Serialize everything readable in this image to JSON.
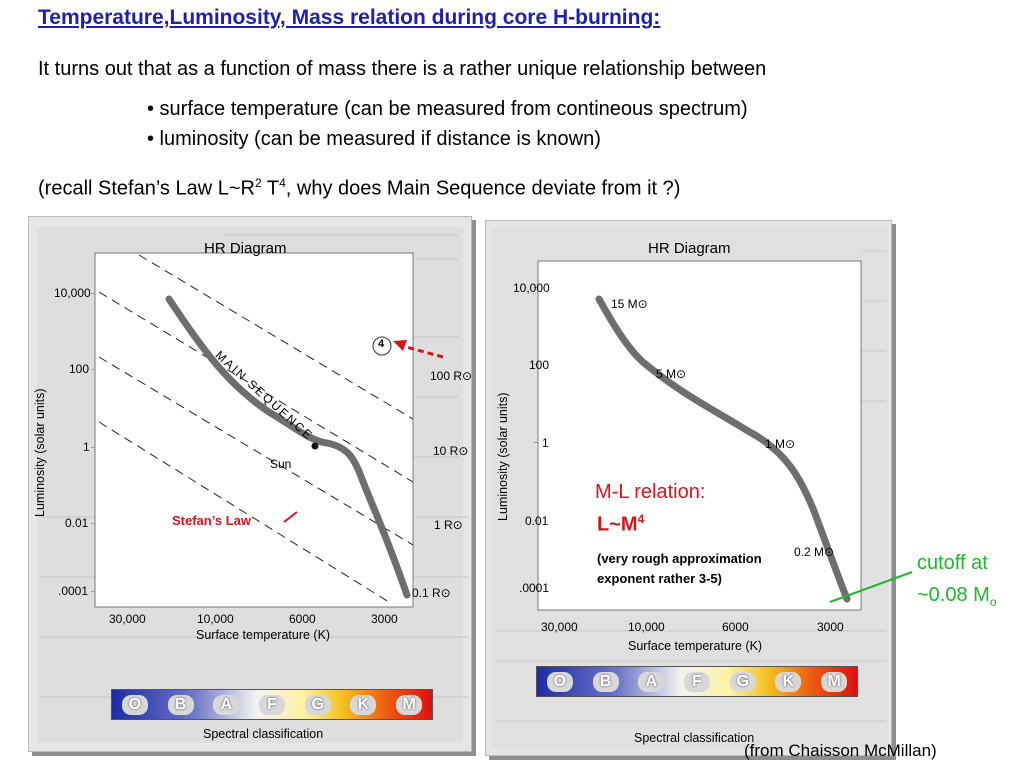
{
  "title": "Temperature,Luminosity, Mass relation during core H-burning:",
  "intro": "It turns out that as a function of mass there is a rather unique relationship between",
  "bullets": [
    "• surface temperature (can be measured from contineous spectrum)",
    "• luminosity (can be measured if distance is known)"
  ],
  "recall": {
    "pre": "(recall Stefan’s Law L~R",
    "sup1": "2",
    "mid": " T",
    "sup2": "4",
    "post": ", why does Main Sequence deviate from it ?)"
  },
  "left_diagram": {
    "title": "HR Diagram",
    "y_axis_label": "Luminosity (solar units)",
    "y_ticks": [
      "10,000",
      "100",
      "1",
      "0.01",
      ".0001"
    ],
    "x_ticks": [
      "30,000",
      "10,000",
      "6000",
      "3000"
    ],
    "x_axis_label": "Surface temperature (K)",
    "main_sequence_label": "MAIN SEQUENCE",
    "sun_label": "Sun",
    "radius_labels": [
      "100 R⊙",
      "10 R⊙",
      "1 R⊙",
      "0.1 R⊙"
    ],
    "marker": "4",
    "stefan_label": "Stefan’s Law",
    "spectral_label": "Spectral classification",
    "spectral_classes": [
      "O",
      "B",
      "A",
      "F",
      "G",
      "K",
      "M"
    ]
  },
  "right_diagram": {
    "title": "HR Diagram",
    "y_axis_label": "Luminosity (solar units)",
    "y_ticks": [
      "10,000",
      "100",
      "1",
      "0.01",
      ".0001"
    ],
    "x_ticks": [
      "30,000",
      "10,000",
      "6000",
      "3000"
    ],
    "x_axis_label": "Surface temperature (K)",
    "mass_labels": [
      "15 M⊙",
      "5 M⊙",
      "1 M⊙",
      "0.2 M⊙"
    ],
    "spectral_label": "Spectral classification",
    "spectral_classes": [
      "O",
      "B",
      "A",
      "F",
      "G",
      "K",
      "M"
    ]
  },
  "ml_relation": {
    "title": "M-L relation:",
    "formula_base": "L~M",
    "formula_sup": "4",
    "approx_line1": "(very rough approximation",
    "approx_line2": "exponent rather 3-5)"
  },
  "cutoff": {
    "line1": "cutoff at",
    "line2_main": "~0.08 M",
    "line2_sub": "o"
  },
  "source": "(from Chaisson McMillan)",
  "colors": {
    "title": "#1f1fb4",
    "annotation_red": "#d7141a",
    "annotation_green": "#1fb62a"
  }
}
